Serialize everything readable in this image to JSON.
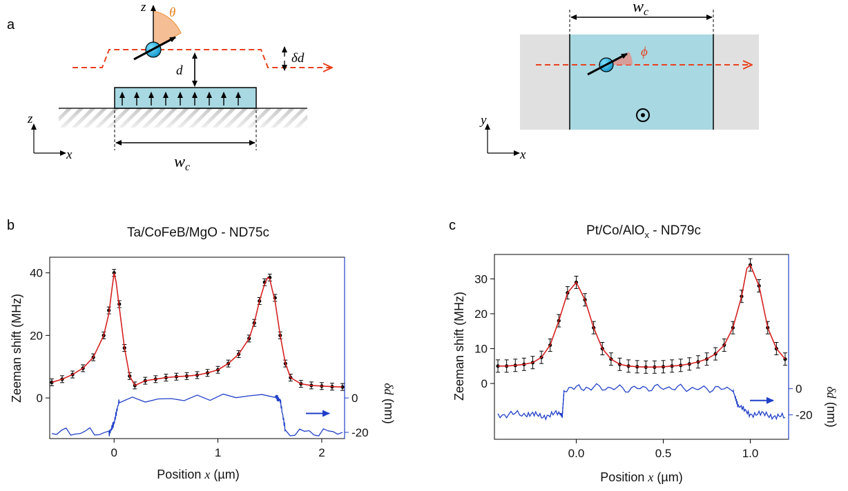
{
  "panels": {
    "a": "a",
    "b": "b",
    "c": "c"
  },
  "diagram": {
    "side_view": {
      "labels": {
        "z": "z",
        "x": "x",
        "theta": "θ",
        "d": "d",
        "delta_d": "δd",
        "w_c": "w",
        "w_c_sub": "c"
      }
    },
    "top_view": {
      "labels": {
        "y": "y",
        "x": "x",
        "phi": "ϕ",
        "w_c": "w",
        "w_c_sub": "c"
      }
    },
    "colors": {
      "stripe": "#a8d8e2",
      "substrate": "#e0e0e0",
      "path": "#e8401c",
      "theta_wedge": "#f5b88a",
      "spin": "#1aa8d8"
    }
  },
  "chart_data": [
    {
      "id": "b",
      "type": "line",
      "title": "Ta/CoFeB/MgO - ND75c",
      "xlabel_main": "Position ",
      "xlabel_var": "x",
      "xlabel_unit": " (µm)",
      "ylabel": "Zeeman shift (MHz)",
      "y2label_var": "δd",
      "y2label_unit": " (nm)",
      "xlim": [
        -0.62,
        2.22
      ],
      "ylim": [
        -13,
        45
      ],
      "xticks": [
        0,
        1,
        2
      ],
      "yticks": [
        0,
        20,
        40
      ],
      "y2ticks": [
        0,
        -20
      ],
      "y2_map": {
        "zero_at_left": 0,
        "minus20_at_left": -11
      },
      "colors": {
        "data": "#000000",
        "fit": "#d62020",
        "profile": "#1f3fc8"
      },
      "data": {
        "x": [
          -0.6,
          -0.5,
          -0.4,
          -0.3,
          -0.2,
          -0.1,
          -0.05,
          0.0,
          0.05,
          0.1,
          0.15,
          0.2,
          0.3,
          0.4,
          0.5,
          0.6,
          0.7,
          0.8,
          0.9,
          1.0,
          1.1,
          1.2,
          1.3,
          1.35,
          1.4,
          1.45,
          1.5,
          1.55,
          1.6,
          1.65,
          1.7,
          1.8,
          1.9,
          2.0,
          2.1,
          2.2
        ],
        "y": [
          5,
          6,
          7.5,
          9.5,
          13,
          20,
          28,
          40,
          30,
          16,
          7,
          4,
          5.5,
          6,
          6.5,
          6.8,
          7,
          7.3,
          8,
          9,
          11,
          14,
          19,
          24,
          31,
          37,
          38.5,
          32,
          20,
          11,
          6.5,
          4.5,
          4,
          3.8,
          3.6,
          3.5
        ]
      },
      "fit": {
        "x": [
          -0.6,
          -0.5,
          -0.4,
          -0.3,
          -0.2,
          -0.1,
          -0.05,
          -0.02,
          0.0,
          0.02,
          0.05,
          0.1,
          0.15,
          0.2,
          0.3,
          0.4,
          0.5,
          0.6,
          0.7,
          0.8,
          0.9,
          1.0,
          1.1,
          1.2,
          1.3,
          1.35,
          1.4,
          1.45,
          1.48,
          1.5,
          1.52,
          1.55,
          1.6,
          1.65,
          1.7,
          1.8,
          1.9,
          2.0,
          2.1,
          2.2
        ],
        "y": [
          5,
          6,
          7.5,
          9.5,
          13,
          20,
          27,
          35,
          40,
          37,
          29,
          16,
          7,
          4,
          5.5,
          6,
          6.5,
          6.8,
          7,
          7.3,
          8,
          9,
          11,
          14,
          19,
          24,
          31,
          36.5,
          38.5,
          38,
          35,
          31,
          20,
          11,
          6.5,
          4.5,
          4,
          3.8,
          3.6,
          3.5
        ]
      },
      "profile": {
        "x": [
          -0.6,
          -0.05,
          0.0,
          0.05,
          1.55,
          1.6,
          1.65,
          2.2
        ],
        "y": [
          -20,
          -20,
          -16,
          0,
          0,
          0,
          -20,
          -20
        ]
      },
      "arrow": "→"
    },
    {
      "id": "c",
      "type": "line",
      "title_main": "Pt/Co/AlO",
      "title_sub": "x",
      "title_tail": " - ND79c",
      "xlabel_main": "Position ",
      "xlabel_var": "x",
      "xlabel_unit": " (µm)",
      "ylabel": "Zeeman shift (MHz)",
      "y2label_var": "δd",
      "y2label_unit": " (nm)",
      "xlim": [
        -0.47,
        1.22
      ],
      "ylim": [
        -16,
        37
      ],
      "xticks": [
        0.0,
        0.5,
        1.0
      ],
      "xticklabels": [
        "0.0",
        "0.5",
        "1.0"
      ],
      "yticks": [
        0,
        10,
        20,
        30
      ],
      "y2ticks": [
        0,
        -20
      ],
      "y2_map": {
        "zero_at_left": -1.5,
        "minus20_at_left": -9
      },
      "colors": {
        "data": "#000000",
        "fit": "#d62020",
        "profile": "#1f3fc8"
      },
      "data": {
        "x": [
          -0.45,
          -0.4,
          -0.35,
          -0.3,
          -0.25,
          -0.2,
          -0.15,
          -0.1,
          -0.05,
          0.0,
          0.05,
          0.1,
          0.15,
          0.2,
          0.25,
          0.3,
          0.35,
          0.4,
          0.45,
          0.5,
          0.55,
          0.6,
          0.65,
          0.7,
          0.75,
          0.8,
          0.85,
          0.9,
          0.95,
          1.0,
          1.05,
          1.1,
          1.15,
          1.2
        ],
        "y": [
          5,
          5,
          5.2,
          5.5,
          6,
          7.5,
          11,
          18,
          26,
          29,
          24,
          16,
          10,
          7,
          5.5,
          5,
          4.8,
          4.7,
          4.7,
          4.8,
          5,
          5.2,
          5.6,
          6.2,
          7,
          8.5,
          11,
          16,
          25,
          34,
          28,
          16,
          10,
          7
        ]
      },
      "fit": {
        "x": [
          -0.45,
          -0.4,
          -0.35,
          -0.3,
          -0.25,
          -0.2,
          -0.15,
          -0.1,
          -0.05,
          0.0,
          0.05,
          0.1,
          0.15,
          0.2,
          0.25,
          0.3,
          0.35,
          0.4,
          0.45,
          0.5,
          0.55,
          0.6,
          0.65,
          0.7,
          0.75,
          0.8,
          0.85,
          0.9,
          0.95,
          0.98,
          1.0,
          1.05,
          1.1,
          1.15,
          1.2
        ],
        "y": [
          5,
          5,
          5.2,
          5.5,
          6,
          7.5,
          11,
          18,
          26,
          29,
          24,
          16,
          10,
          7,
          5.5,
          5,
          4.8,
          4.7,
          4.7,
          4.8,
          5,
          5.2,
          5.6,
          6.2,
          7,
          8.5,
          11,
          16,
          25,
          33,
          34,
          28,
          16,
          10,
          7
        ]
      },
      "profile": {
        "x": [
          -0.45,
          -0.3,
          -0.2,
          -0.1,
          -0.08,
          -0.07,
          0.1,
          0.3,
          0.5,
          0.7,
          0.9,
          0.93,
          1.0,
          1.1,
          1.2
        ],
        "y": [
          -20,
          -19,
          -21,
          -19,
          -20,
          0,
          1,
          0,
          1,
          0,
          0,
          -14,
          -19,
          -20,
          -22
        ]
      },
      "arrow": "→"
    }
  ]
}
